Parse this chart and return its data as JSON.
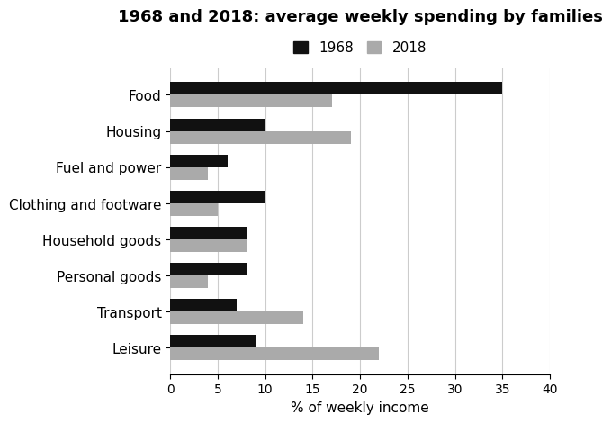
{
  "title": "1968 and 2018: average weekly spending by families",
  "categories": [
    "Food",
    "Housing",
    "Fuel and power",
    "Clothing and footware",
    "Household goods",
    "Personal goods",
    "Transport",
    "Leisure"
  ],
  "values_1968": [
    35,
    10,
    6,
    10,
    8,
    8,
    7,
    9
  ],
  "values_2018": [
    17,
    19,
    4,
    5,
    8,
    4,
    14,
    22
  ],
  "color_1968": "#111111",
  "color_2018": "#aaaaaa",
  "xlabel": "% of weekly income",
  "xlim": [
    0,
    40
  ],
  "xticks": [
    0,
    5,
    10,
    15,
    20,
    25,
    30,
    35,
    40
  ],
  "legend_labels": [
    "1968",
    "2018"
  ],
  "bar_height": 0.35,
  "title_fontsize": 13,
  "label_fontsize": 11,
  "tick_fontsize": 10
}
